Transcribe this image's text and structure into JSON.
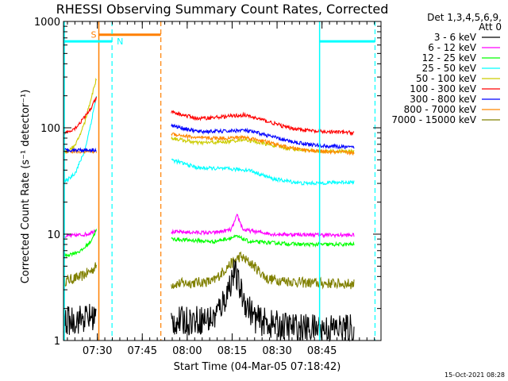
{
  "chart_data": {
    "type": "line",
    "title": "RHESSI Observing Summary Count Rates, Corrected",
    "xlabel": "Start Time (04-Mar-05 07:18:42)",
    "ylabel": "Corrected Count Rate (s⁻¹ detector⁻¹)",
    "yscale": "log",
    "ylim": [
      1,
      1000
    ],
    "xlim_minutes": [
      0,
      106
    ],
    "x_ticks": [
      {
        "label": "07:30",
        "minute": 11.3
      },
      {
        "label": "07:45",
        "minute": 26.3
      },
      {
        "label": "08:00",
        "minute": 41.3
      },
      {
        "label": "08:15",
        "minute": 56.3
      },
      {
        "label": "08:30",
        "minute": 71.3
      },
      {
        "label": "08:45",
        "minute": 86.3
      }
    ],
    "y_ticks": [
      {
        "label": "1",
        "value": 1
      },
      {
        "label": "10",
        "value": 10
      },
      {
        "label": "100",
        "value": 100
      },
      {
        "label": "1000",
        "value": 1000
      }
    ],
    "legend_header": [
      "Det 1,3,4,5,6,9,",
      "Att 0"
    ],
    "legend_placement": "right",
    "gap_minutes": [
      11.5,
      36
    ],
    "series": [
      {
        "name": "3 - 6 keV",
        "color": "#000000",
        "seg1": [
          [
            0,
            1.5
          ],
          [
            11,
            1.7
          ]
        ],
        "seg2": [
          [
            36,
            1.5
          ],
          [
            50,
            1.6
          ],
          [
            54,
            2.5
          ],
          [
            57,
            4.5
          ],
          [
            60,
            2.5
          ],
          [
            64,
            1.6
          ],
          [
            70,
            1.4
          ],
          [
            80,
            1.3
          ],
          [
            97,
            1.3
          ]
        ]
      },
      {
        "name": "6 - 12 keV",
        "color": "#ff00ff",
        "seg1": [
          [
            0,
            9.5
          ],
          [
            8,
            10
          ],
          [
            11,
            11
          ]
        ],
        "seg2": [
          [
            36,
            10.5
          ],
          [
            50,
            10.3
          ],
          [
            56,
            11
          ],
          [
            58,
            15
          ],
          [
            60,
            11
          ],
          [
            70,
            10
          ],
          [
            90,
            9.8
          ],
          [
            97,
            9.8
          ]
        ]
      },
      {
        "name": "12 - 25 keV",
        "color": "#00ff00",
        "seg1": [
          [
            0,
            6.2
          ],
          [
            6,
            7
          ],
          [
            9,
            8.5
          ],
          [
            11,
            11
          ]
        ],
        "seg2": [
          [
            36,
            9
          ],
          [
            50,
            8.5
          ],
          [
            58,
            9.5
          ],
          [
            62,
            8.5
          ],
          [
            80,
            8
          ],
          [
            97,
            8
          ]
        ]
      },
      {
        "name": "25 - 50 keV",
        "color": "#00ffff",
        "seg1": [
          [
            0,
            30
          ],
          [
            4,
            38
          ],
          [
            7,
            60
          ],
          [
            9,
            105
          ],
          [
            11,
            200
          ]
        ],
        "seg2": [
          [
            36,
            50
          ],
          [
            45,
            42
          ],
          [
            55,
            41
          ],
          [
            62,
            40
          ],
          [
            70,
            33
          ],
          [
            80,
            30
          ],
          [
            97,
            31
          ]
        ]
      },
      {
        "name": "50 - 100 keV",
        "color": "#cccc00",
        "seg1": [
          [
            0,
            57
          ],
          [
            4,
            68
          ],
          [
            7,
            110
          ],
          [
            9,
            180
          ],
          [
            11,
            290
          ]
        ],
        "seg2": [
          [
            36,
            80
          ],
          [
            45,
            72
          ],
          [
            55,
            74
          ],
          [
            60,
            78
          ],
          [
            66,
            72
          ],
          [
            75,
            64
          ],
          [
            85,
            60
          ],
          [
            97,
            60
          ]
        ]
      },
      {
        "name": "100 - 300 keV",
        "color": "#ff0000",
        "seg1": [
          [
            0,
            88
          ],
          [
            4,
            100
          ],
          [
            7,
            125
          ],
          [
            9,
            150
          ],
          [
            11,
            190
          ]
        ],
        "seg2": [
          [
            36,
            140
          ],
          [
            45,
            122
          ],
          [
            55,
            128
          ],
          [
            60,
            132
          ],
          [
            66,
            120
          ],
          [
            75,
            100
          ],
          [
            85,
            92
          ],
          [
            97,
            90
          ]
        ]
      },
      {
        "name": "300 - 800 keV",
        "color": "#0000ff",
        "seg1": [
          [
            0,
            62
          ],
          [
            11,
            62
          ]
        ],
        "seg2": [
          [
            36,
            105
          ],
          [
            45,
            92
          ],
          [
            55,
            93
          ],
          [
            60,
            95
          ],
          [
            66,
            88
          ],
          [
            75,
            75
          ],
          [
            85,
            68
          ],
          [
            97,
            65
          ]
        ]
      },
      {
        "name": "800 - 7000 keV",
        "color": "#ff8800",
        "seg1": [
          [
            0,
            60
          ],
          [
            11,
            60
          ]
        ],
        "seg2": [
          [
            36,
            88
          ],
          [
            45,
            80
          ],
          [
            55,
            80
          ],
          [
            60,
            82
          ],
          [
            66,
            76
          ],
          [
            75,
            65
          ],
          [
            85,
            60
          ],
          [
            97,
            58
          ]
        ]
      },
      {
        "name": "7000 - 15000 keV",
        "color": "#808000",
        "seg1": [
          [
            0,
            3.6
          ],
          [
            6,
            4
          ],
          [
            9,
            4.5
          ],
          [
            11,
            5
          ]
        ],
        "seg2": [
          [
            36,
            3.4
          ],
          [
            50,
            3.6
          ],
          [
            55,
            5
          ],
          [
            59,
            6.2
          ],
          [
            63,
            5.2
          ],
          [
            68,
            3.8
          ],
          [
            80,
            3.5
          ],
          [
            97,
            3.4
          ]
        ]
      }
    ],
    "markers": [
      {
        "label": "S",
        "color": "#ff8000",
        "solid_at": 11.8,
        "dashed_at": 32.5,
        "bar_level": 750
      },
      {
        "label": "N",
        "color": "#00ffff",
        "dashed_at": 16.2,
        "bar_level": 650
      }
    ],
    "right_markers": [
      {
        "color": "#00ffff",
        "solid_at": 85.5,
        "dashed_at": 104,
        "bar_level": 650
      }
    ]
  },
  "footer_stamp": "15-Oct-2021 08:28"
}
